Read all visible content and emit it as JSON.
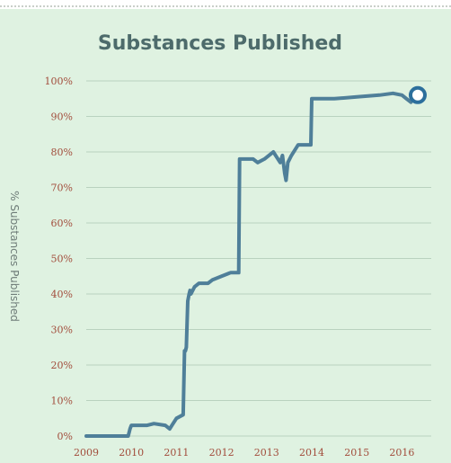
{
  "chart_data": {
    "type": "line",
    "title": "Substances Published",
    "xlabel": "",
    "ylabel": "% Substances Published",
    "xlim": [
      2009.0,
      2016.45
    ],
    "ylim": [
      0,
      100
    ],
    "x_ticks": [
      "2009",
      "2010",
      "2011",
      "2012",
      "2013",
      "2014",
      "2015",
      "2016"
    ],
    "y_ticks": [
      "0%",
      "10%",
      "20%",
      "30%",
      "40%",
      "50%",
      "60%",
      "70%",
      "80%",
      "90%",
      "100%"
    ],
    "grid": "horizontal",
    "series": [
      {
        "x": [
          2009.0,
          2009.93,
          2009.97,
          2010.0,
          2010.1,
          2010.35,
          2010.5,
          2010.75,
          2010.85,
          2010.9,
          2011.0,
          2011.15,
          2011.18,
          2011.2,
          2011.22,
          2011.25,
          2011.28,
          2011.3,
          2011.32,
          2011.4,
          2011.5,
          2011.7,
          2011.8,
          2012.0,
          2012.2,
          2012.38,
          2012.4,
          2012.55,
          2012.7,
          2012.8,
          2012.95,
          2013.05,
          2013.15,
          2013.2,
          2013.3,
          2013.35,
          2013.4,
          2013.43,
          2013.47,
          2013.55,
          2013.7,
          2013.98,
          2014.0,
          2014.1,
          2014.5,
          2015.0,
          2015.5,
          2015.8,
          2016.0,
          2016.1,
          2016.2,
          2016.3
        ],
        "y": [
          0,
          0,
          2,
          3,
          3,
          3,
          3.5,
          3,
          2,
          3,
          5,
          6,
          24,
          24,
          25,
          38,
          40,
          41,
          40,
          42,
          43,
          43,
          44,
          45,
          46,
          46,
          78,
          78,
          78,
          77,
          78,
          79,
          80,
          79,
          77,
          79,
          74,
          72,
          77,
          79,
          82,
          82,
          95,
          95,
          95,
          95.5,
          96,
          96.5,
          96,
          95,
          94,
          96
        ]
      }
    ],
    "highlight_point": {
      "x": 2016.35,
      "y": 96
    },
    "colors": {
      "line": "#4f7f99",
      "grid": "#b9d2bf",
      "background": "#dff2e1",
      "tick_label": "#a24d3c",
      "title": "#4d6b6b"
    }
  }
}
